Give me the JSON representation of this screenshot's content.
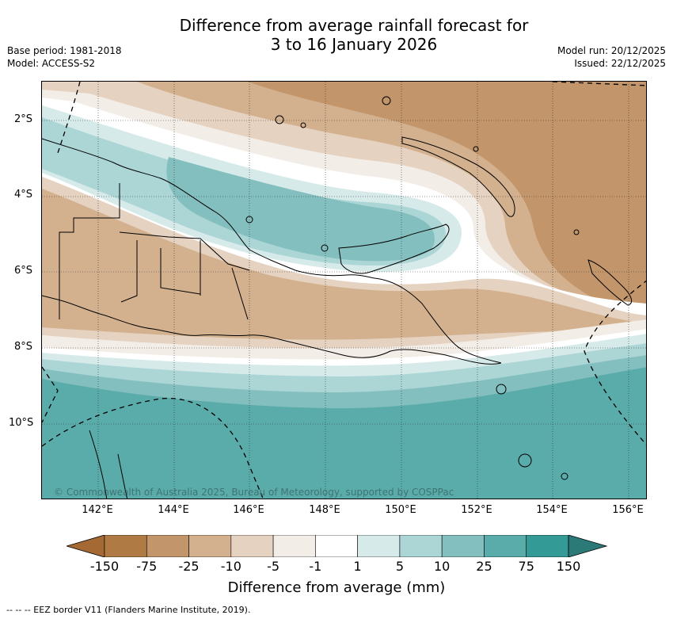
{
  "title": {
    "line1": "Difference from average rainfall forecast for",
    "line2": "3 to 16 January 2026"
  },
  "meta": {
    "base_period": "Base period: 1981-2018",
    "model": "Model: ACCESS-S2",
    "model_run": "Model run: 20/12/2025",
    "issued": "Issued: 22/12/2025"
  },
  "map": {
    "lat_labels": [
      "2°S",
      "4°S",
      "6°S",
      "8°S",
      "10°S"
    ],
    "lon_labels": [
      "142°E",
      "144°E",
      "146°E",
      "148°E",
      "150°E",
      "152°E",
      "154°E",
      "156°E"
    ],
    "copyright": "© Commonwealth of Australia 2025, Bureau of Meteorology, supported by COSPPac"
  },
  "colorbar": {
    "ticks": [
      "-150",
      "-75",
      "-25",
      "-10",
      "-5",
      "-1",
      "1",
      "5",
      "10",
      "25",
      "75",
      "150"
    ],
    "colors": [
      "#a56a34",
      "#b07a45",
      "#c2956a",
      "#d3b18f",
      "#e6d2c0",
      "#f3ede7",
      "#ffffff",
      "#d6eaea",
      "#acd5d5",
      "#84bfbf",
      "#5aacaa",
      "#349a96",
      "#2c7a78"
    ],
    "label": "Difference from average (mm)"
  },
  "footer": "--  --  -- EEZ border V11 (Flanders Marine Institute, 2019)."
}
